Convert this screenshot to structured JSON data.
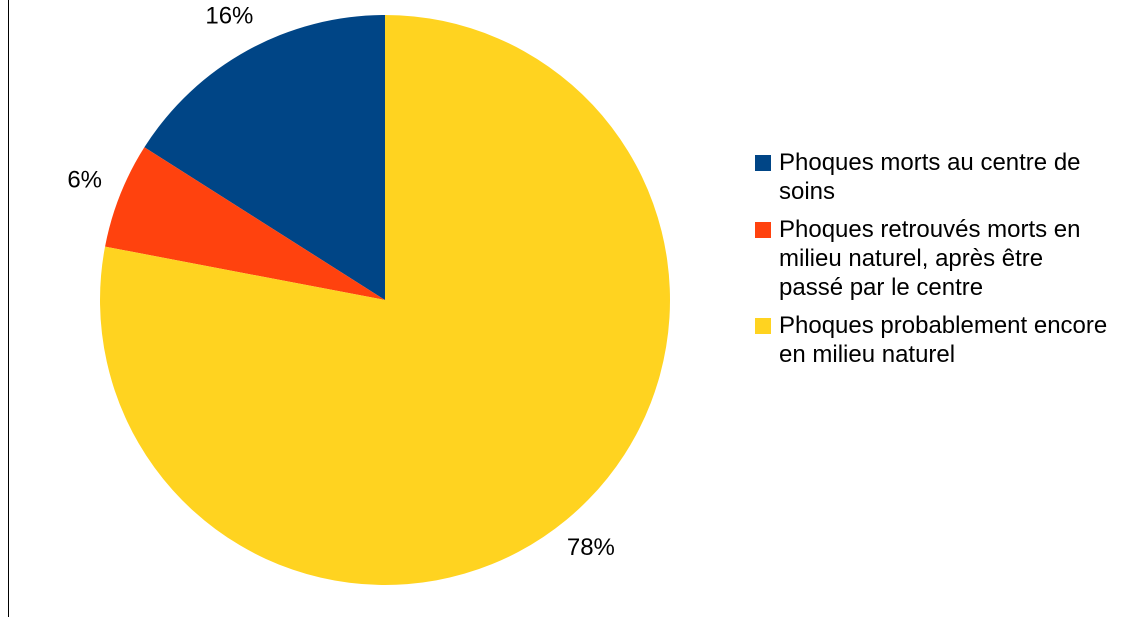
{
  "chart_data": {
    "type": "pie",
    "categories": [
      "Phoques morts au centre de soins",
      "Phoques retrouvés morts en milieu naturel, après être passé par le centre",
      "Phoques probablement encore en milieu naturel"
    ],
    "values": [
      16,
      6,
      78
    ],
    "value_labels": [
      "16%",
      "6%",
      "78%"
    ],
    "colors": [
      "#004586",
      "#ff420e",
      "#ffd320"
    ],
    "legend": "right"
  }
}
